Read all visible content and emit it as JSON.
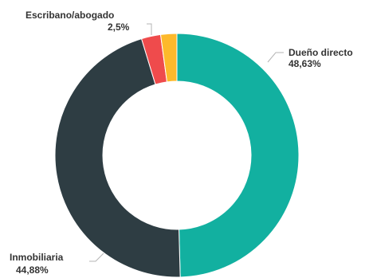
{
  "chart_data": {
    "type": "pie",
    "title": "",
    "slices": [
      {
        "label": "Dueño directo",
        "value_text": "48,63%",
        "value": 48.63,
        "color": "#12b0a0"
      },
      {
        "label": "Inmobiliaria",
        "value_text": "44,88%",
        "value": 44.88,
        "color": "#2e3d43"
      },
      {
        "label": "Escribano/abogado",
        "value_text": "2,5%",
        "value": 2.5,
        "color": "#ef4b4c"
      },
      {
        "label": "",
        "value_text": "",
        "value": 2.1,
        "color": "#fdb92b"
      }
    ]
  }
}
